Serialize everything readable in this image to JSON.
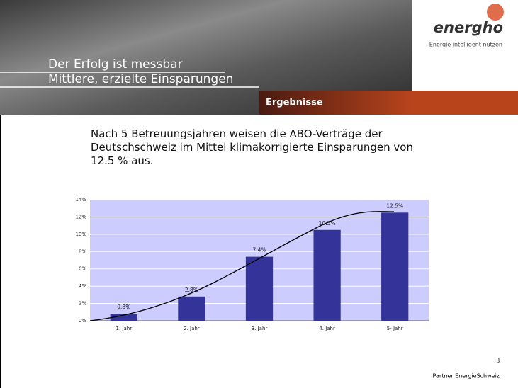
{
  "header": {
    "title": "Der Erfolg ist messbar",
    "subtitle": "Mittlere, erzielte Einsparungen",
    "section": "Ergebnisse",
    "logo": "energho",
    "tagline": "Energie intelligent nutzen"
  },
  "body": "Nach 5 Betreuungsjahren weisen die ABO-Verträge der Deutschschweiz im Mittel klimakorrigierte Einsparungen von 12.5 % aus.",
  "chart_data": {
    "type": "bar",
    "categories": [
      "1. Jahr",
      "2. Jahr",
      "3. Jahr",
      "4. Jahr",
      "5- Jahr"
    ],
    "values": [
      0.8,
      2.8,
      7.4,
      10.5,
      12.5
    ],
    "value_labels": [
      "0.8%",
      "2.8%",
      "7.4%",
      "10.5%",
      "12.5%"
    ],
    "color": "#333399",
    "ylim": [
      0,
      14
    ],
    "yticks": [
      {
        "value": 0,
        "label": "0%"
      },
      {
        "value": 2,
        "label": "2%"
      },
      {
        "value": 4,
        "label": "4%"
      },
      {
        "value": 6,
        "label": "6%"
      },
      {
        "value": 8,
        "label": "8%"
      },
      {
        "value": 10,
        "label": "10%"
      },
      {
        "value": 12,
        "label": "12%"
      },
      {
        "value": 14,
        "label": "14%"
      }
    ],
    "grid": true
  },
  "footer": {
    "page": "8",
    "partner": "Partner EnergieSchweiz"
  }
}
